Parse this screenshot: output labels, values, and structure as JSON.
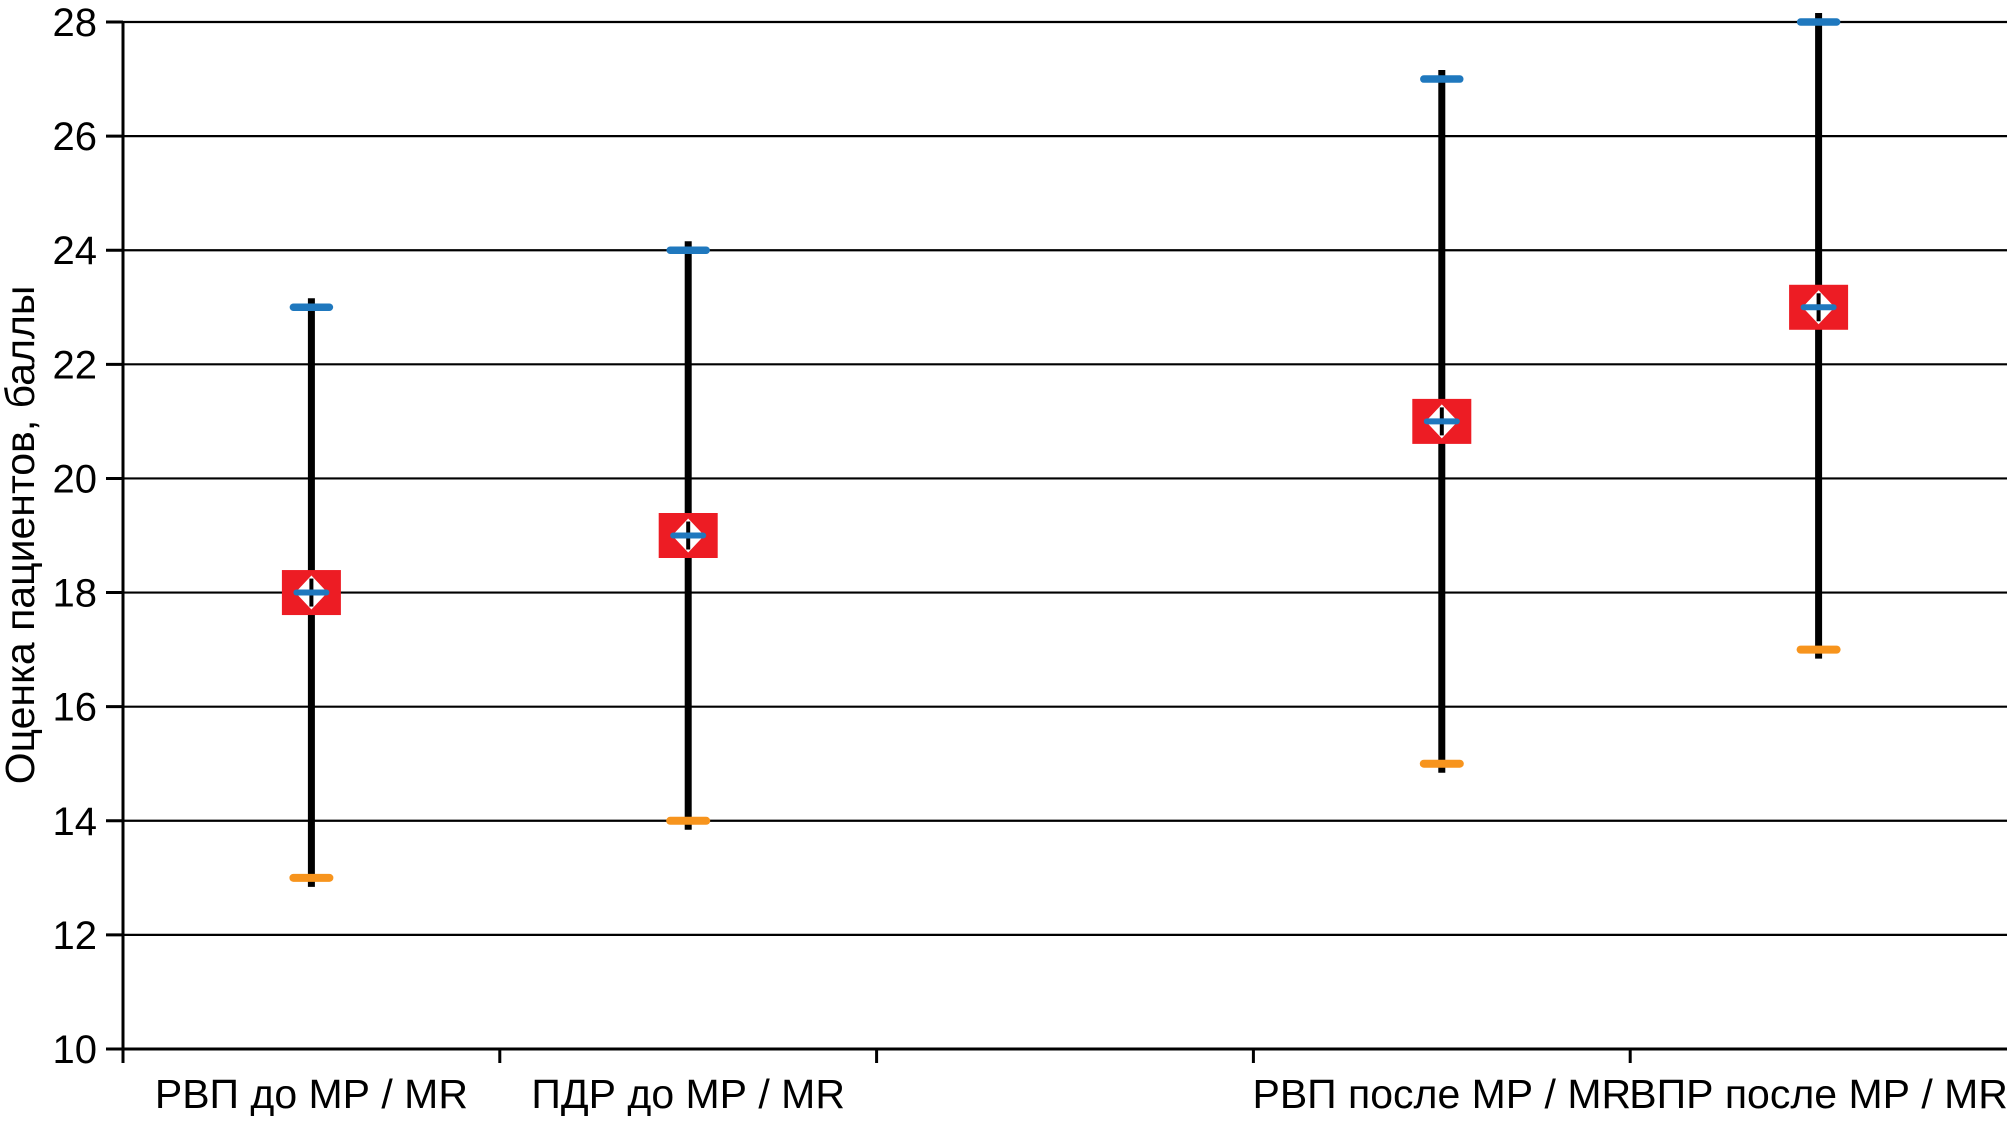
{
  "chart_data": {
    "type": "box-whisker",
    "title": "",
    "xlabel": "",
    "ylabel": "Оценка пациентов, баллы",
    "ylim": [
      10,
      28
    ],
    "ytick_step": 2,
    "grid": true,
    "legend": false,
    "y_tick_labels": [
      "10",
      "12",
      "14",
      "16",
      "18",
      "20",
      "22",
      "24",
      "26",
      "28"
    ],
    "categories": [
      "РВП до МР / MR",
      "ПДР до МР / MR",
      "",
      "РВП после МР / MR",
      "ВПР после МР / MR"
    ],
    "series": [
      {
        "name": "РВП до МР / MR",
        "slot": 0,
        "median": 18,
        "max": 23,
        "min": 13
      },
      {
        "name": "ПДР до МР / MR",
        "slot": 1,
        "median": 19,
        "max": 24,
        "min": 14
      },
      {
        "name": "РВП после МР / MR",
        "slot": 3,
        "median": 21,
        "max": 27,
        "min": 15
      },
      {
        "name": "ВПР после МР / MR",
        "slot": 4,
        "median": 23,
        "max": 28,
        "min": 17
      }
    ],
    "colors": {
      "background": "#ffffff",
      "text": "#000000",
      "grid": "#000000",
      "axis": "#000000",
      "whisker": "#000000",
      "box": "#ed1c24",
      "max_cap": "#1f78be",
      "min_cap": "#f7941d",
      "median_dash": "#1f78be",
      "diamond": "#ffffff",
      "diamond_center_line": "#000000"
    }
  }
}
